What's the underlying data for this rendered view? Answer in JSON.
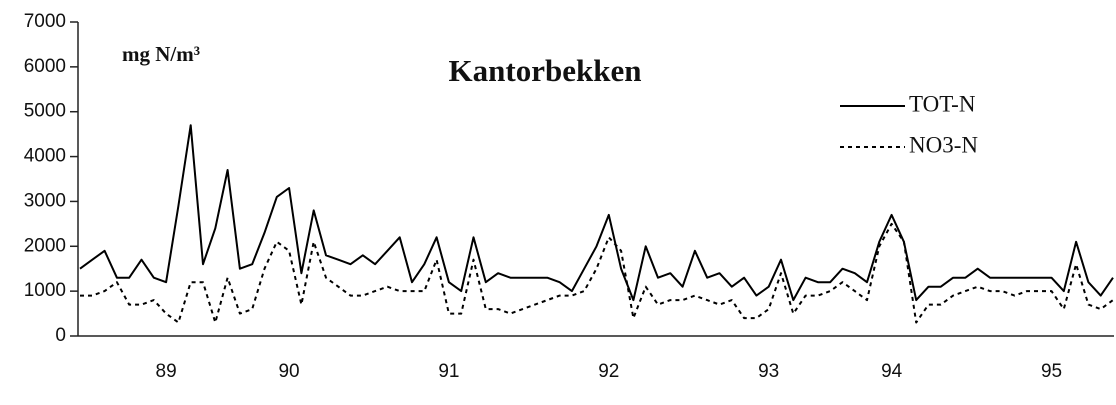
{
  "chart_data": {
    "type": "line",
    "title": "Kantorbekken",
    "unit_label": "mg N/m³",
    "categories": [
      null,
      null,
      null,
      null,
      null,
      null,
      null,
      "89",
      null,
      null,
      null,
      null,
      null,
      null,
      null,
      null,
      null,
      "90",
      null,
      null,
      null,
      null,
      null,
      null,
      null,
      null,
      null,
      null,
      null,
      null,
      "91",
      null,
      null,
      null,
      null,
      null,
      null,
      null,
      null,
      null,
      null,
      null,
      null,
      "92",
      null,
      null,
      null,
      null,
      null,
      null,
      null,
      null,
      null,
      null,
      null,
      null,
      "93",
      null,
      null,
      null,
      null,
      null,
      null,
      null,
      null,
      null,
      "94",
      null,
      null,
      null,
      null,
      null,
      null,
      null,
      null,
      null,
      null,
      null,
      null,
      "95",
      null,
      null,
      null,
      null,
      null
    ],
    "series": [
      {
        "name": "TOT-N",
        "color": "#000000",
        "dash": false,
        "values": [
          1500,
          1700,
          1900,
          1300,
          1300,
          1700,
          1300,
          1200,
          2900,
          4700,
          1600,
          2400,
          3700,
          1500,
          1600,
          2300,
          3100,
          3300,
          1400,
          2800,
          1800,
          1700,
          1600,
          1800,
          1600,
          1900,
          2200,
          1200,
          1600,
          2200,
          1200,
          1000,
          2200,
          1200,
          1400,
          1300,
          1300,
          1300,
          1300,
          1200,
          1000,
          1500,
          2000,
          2700,
          1500,
          800,
          2000,
          1300,
          1400,
          1100,
          1900,
          1300,
          1400,
          1100,
          1300,
          900,
          1100,
          1700,
          800,
          1300,
          1200,
          1200,
          1500,
          1400,
          1200,
          2100,
          2700,
          2100,
          800,
          1100,
          1100,
          1300,
          1300,
          1500,
          1300,
          1300,
          1300,
          1300,
          1300,
          1300,
          1000,
          2100,
          1200,
          900,
          1300
        ]
      },
      {
        "name": "NO3-N",
        "color": "#000000",
        "dash": true,
        "values": [
          900,
          900,
          1000,
          1200,
          700,
          700,
          800,
          500,
          300,
          1200,
          1200,
          300,
          1300,
          500,
          600,
          1500,
          2100,
          1900,
          700,
          2100,
          1300,
          1100,
          900,
          900,
          1000,
          1100,
          1000,
          1000,
          1000,
          1700,
          500,
          500,
          1700,
          600,
          600,
          500,
          600,
          700,
          800,
          900,
          900,
          1000,
          1500,
          2200,
          1900,
          400,
          1100,
          700,
          800,
          800,
          900,
          800,
          700,
          800,
          400,
          400,
          600,
          1400,
          500,
          900,
          900,
          1000,
          1200,
          1000,
          800,
          2000,
          2500,
          2100,
          300,
          700,
          700,
          900,
          1000,
          1100,
          1000,
          1000,
          900,
          1000,
          1000,
          1000,
          600,
          1600,
          700,
          600,
          800
        ]
      }
    ],
    "ylim": [
      0,
      7000
    ],
    "yticks": [
      0,
      1000,
      2000,
      3000,
      4000,
      5000,
      6000,
      7000
    ],
    "grid": false,
    "legend": "top-right"
  }
}
